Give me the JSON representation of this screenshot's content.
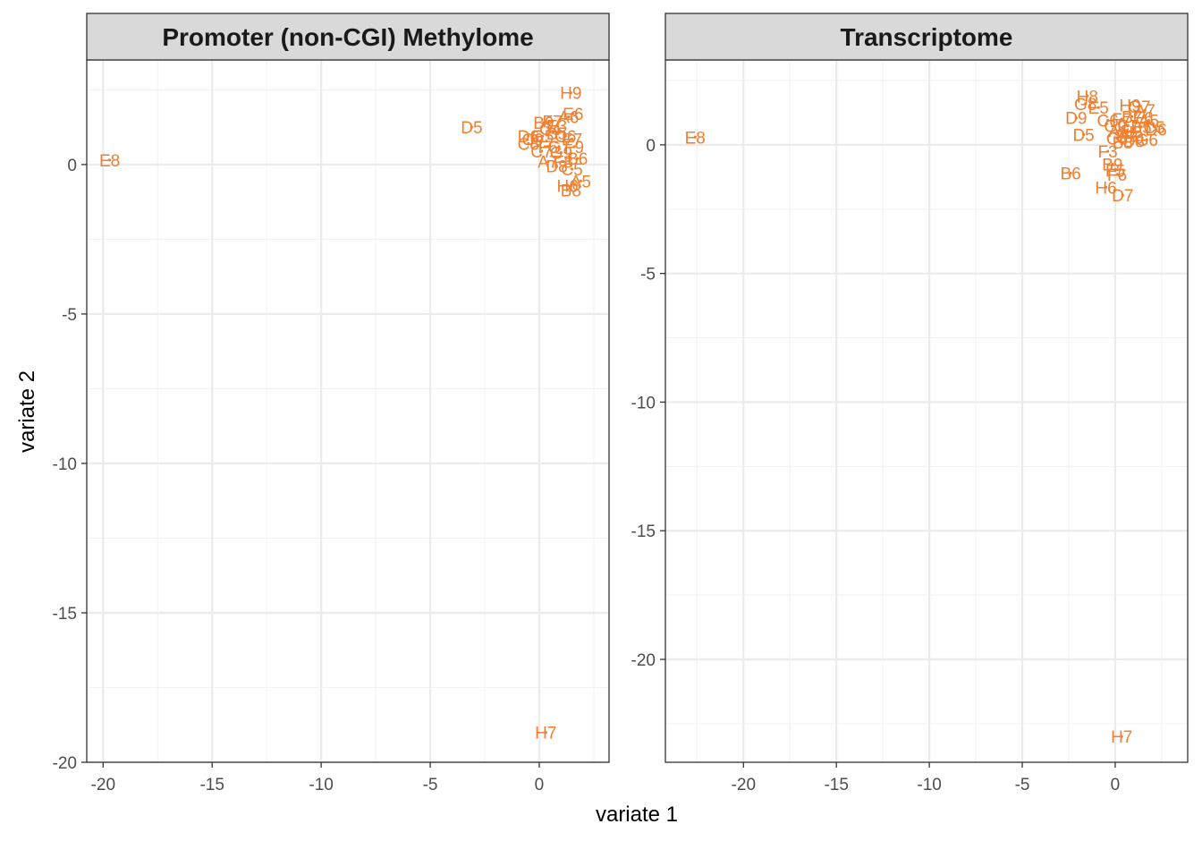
{
  "axes": {
    "xlabel": "variate 1",
    "ylabel": "variate 2"
  },
  "colors": {
    "point": "#F08030",
    "grid_major": "#EBEBEB",
    "grid_minor": "#F2F2F2",
    "strip_fill": "#D9D9D9",
    "panel_border": "#333333",
    "tick_text": "#4D4D4D"
  },
  "chart_data": [
    {
      "type": "scatter",
      "title": "Promoter (non-CGI) Methylome",
      "xlabel": "variate 1",
      "ylabel": "variate 2",
      "xlim": [
        -20.75,
        3.2
      ],
      "ylim": [
        -20.0,
        3.5
      ],
      "x_ticks": [
        -20,
        -15,
        -10,
        -5,
        0
      ],
      "y_ticks": [
        -20,
        -15,
        -10,
        -5,
        0
      ],
      "grid": true,
      "points": [
        {
          "label": "E8",
          "x": -19.7,
          "y": 0.15
        },
        {
          "label": "H7",
          "x": 0.3,
          "y": -19.0
        },
        {
          "label": "D5",
          "x": -3.1,
          "y": 1.25
        },
        {
          "label": "H9",
          "x": 1.45,
          "y": 2.4
        },
        {
          "label": "E6",
          "x": 1.55,
          "y": 1.7
        },
        {
          "label": "A6",
          "x": 1.35,
          "y": 1.6
        },
        {
          "label": "B9",
          "x": 0.2,
          "y": 1.4
        },
        {
          "label": "F7",
          "x": 0.6,
          "y": 1.45
        },
        {
          "label": "E3",
          "x": 0.8,
          "y": 1.3
        },
        {
          "label": "C4",
          "x": 0.5,
          "y": 1.2
        },
        {
          "label": "D6",
          "x": -0.5,
          "y": 0.95
        },
        {
          "label": "C9",
          "x": -0.3,
          "y": 0.85
        },
        {
          "label": "G5",
          "x": 0.15,
          "y": 0.95
        },
        {
          "label": "B5",
          "x": 0.8,
          "y": 1.05
        },
        {
          "label": "C6",
          "x": 1.2,
          "y": 0.95
        },
        {
          "label": "E7",
          "x": 1.5,
          "y": 0.85
        },
        {
          "label": "C8",
          "x": -0.5,
          "y": 0.7
        },
        {
          "label": "F6",
          "x": 0.4,
          "y": 0.6
        },
        {
          "label": "G7",
          "x": 0.9,
          "y": 0.6
        },
        {
          "label": "F9",
          "x": 1.6,
          "y": 0.6
        },
        {
          "label": "C7",
          "x": 0.1,
          "y": 0.45
        },
        {
          "label": "G9",
          "x": 1.0,
          "y": 0.4
        },
        {
          "label": "B6",
          "x": 1.75,
          "y": 0.2
        },
        {
          "label": "A7",
          "x": 0.4,
          "y": 0.1
        },
        {
          "label": "F8",
          "x": 1.1,
          "y": 0.1
        },
        {
          "label": "D8",
          "x": 0.8,
          "y": -0.05
        },
        {
          "label": "C5",
          "x": 1.5,
          "y": -0.15
        },
        {
          "label": "A5",
          "x": 1.9,
          "y": -0.55
        },
        {
          "label": "H6",
          "x": 1.3,
          "y": -0.7
        },
        {
          "label": "B8",
          "x": 1.45,
          "y": -0.85
        }
      ]
    },
    {
      "type": "scatter",
      "title": "Transcriptome",
      "xlabel": "variate 1",
      "ylabel": "variate 2",
      "xlim": [
        -24.2,
        3.9
      ],
      "ylim": [
        -24.0,
        3.3
      ],
      "x_ticks": [
        -20,
        -15,
        -10,
        -5,
        0
      ],
      "y_ticks": [
        -20,
        -15,
        -10,
        -5,
        0
      ],
      "grid": true,
      "points": [
        {
          "label": "E8",
          "x": -22.6,
          "y": 0.3
        },
        {
          "label": "H7",
          "x": 0.35,
          "y": -23.0
        },
        {
          "label": "H8",
          "x": -1.5,
          "y": 1.9
        },
        {
          "label": "G8",
          "x": -1.6,
          "y": 1.6
        },
        {
          "label": "E5",
          "x": -0.9,
          "y": 1.45
        },
        {
          "label": "H9",
          "x": 0.8,
          "y": 1.55
        },
        {
          "label": "G7",
          "x": 1.3,
          "y": 1.5
        },
        {
          "label": "A7",
          "x": 1.6,
          "y": 1.35
        },
        {
          "label": "D9",
          "x": -2.1,
          "y": 1.05
        },
        {
          "label": "C6",
          "x": -0.4,
          "y": 0.95
        },
        {
          "label": "F7",
          "x": 0.35,
          "y": 1.0
        },
        {
          "label": "B7",
          "x": 0.9,
          "y": 1.1
        },
        {
          "label": "E6",
          "x": 1.5,
          "y": 1.05
        },
        {
          "label": "A5",
          "x": 1.8,
          "y": 0.95
        },
        {
          "label": "G9",
          "x": 0.0,
          "y": 0.75
        },
        {
          "label": "C7",
          "x": 0.7,
          "y": 0.75
        },
        {
          "label": "B5",
          "x": 1.4,
          "y": 0.7
        },
        {
          "label": "C5",
          "x": 2.1,
          "y": 0.7
        },
        {
          "label": "D6",
          "x": 2.2,
          "y": 0.6
        },
        {
          "label": "A6",
          "x": 0.2,
          "y": 0.55
        },
        {
          "label": "H5",
          "x": 0.9,
          "y": 0.5
        },
        {
          "label": "E7",
          "x": 0.6,
          "y": 0.35
        },
        {
          "label": "C8",
          "x": 0.1,
          "y": 0.25
        },
        {
          "label": "F8",
          "x": 1.0,
          "y": 0.3
        },
        {
          "label": "G6",
          "x": 1.7,
          "y": 0.2
        },
        {
          "label": "D5",
          "x": -1.7,
          "y": 0.4
        },
        {
          "label": "B8",
          "x": 0.4,
          "y": 0.1
        },
        {
          "label": "D8",
          "x": 1.0,
          "y": 0.15
        },
        {
          "label": "F3",
          "x": -0.4,
          "y": -0.25
        },
        {
          "label": "B9",
          "x": -0.15,
          "y": -0.75
        },
        {
          "label": "B6",
          "x": -2.4,
          "y": -1.1
        },
        {
          "label": "F5",
          "x": 0.0,
          "y": -1.0
        },
        {
          "label": "F6",
          "x": 0.1,
          "y": -1.15
        },
        {
          "label": "H6",
          "x": -0.5,
          "y": -1.65
        },
        {
          "label": "D7",
          "x": 0.4,
          "y": -1.95
        }
      ]
    }
  ]
}
